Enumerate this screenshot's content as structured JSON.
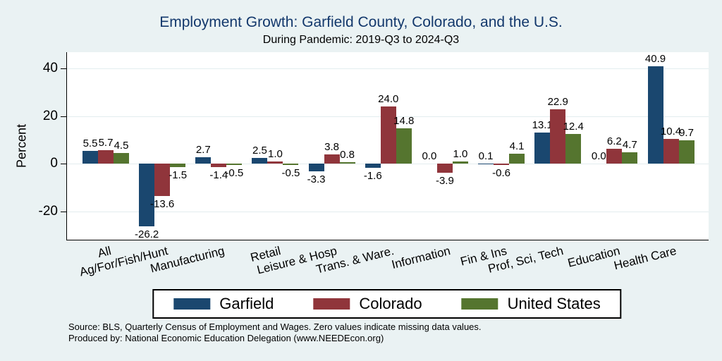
{
  "title": "Employment Growth: Garfield County, Colorado, and the U.S.",
  "subtitle": "During Pandemic: 2019-Q3 to 2024-Q3",
  "source_line1": "Source: BLS, Quarterly Census of Employment and Wages. Zero values indicate missing data values.",
  "source_line2": "Produced by: National Economic Education Delegation (www.NEEDEcon.org)",
  "colors": {
    "background": "#EAF2F3",
    "plot_background": "#FFFFFF",
    "title_text": "#13386C",
    "gridline": "#E3EDEF",
    "garfield": "#1A476F",
    "colorado": "#90353B",
    "united_states": "#55752F"
  },
  "chart_data": {
    "type": "bar",
    "title": "Employment Growth: Garfield County, Colorado, and the U.S.",
    "subtitle": "During Pandemic: 2019-Q3 to 2024-Q3",
    "xlabel": "",
    "ylabel": "Percent",
    "yticks": [
      40,
      20,
      0,
      -20
    ],
    "ylim": [
      -31.8,
      46.8
    ],
    "grid": true,
    "legend_position": "bottom",
    "value_labels": "one_decimal",
    "categories": [
      "All",
      "Ag/For/Fish/Hunt",
      "Manufacturing",
      "Retail",
      "Leisure & Hosp",
      "Trans. & Ware.",
      "Information",
      "Fin & Ins",
      "Prof, Sci, Tech",
      "Education",
      "Health Care"
    ],
    "series": [
      {
        "name": "Garfield",
        "color": "#1A476F",
        "values": [
          5.5,
          -26.2,
          2.7,
          2.5,
          -3.3,
          -1.6,
          0.0,
          0.1,
          13.1,
          0.0,
          40.9
        ]
      },
      {
        "name": "Colorado",
        "color": "#90353B",
        "values": [
          5.7,
          -13.6,
          -1.4,
          1.0,
          3.8,
          24.0,
          -3.9,
          -0.6,
          22.9,
          6.2,
          10.4
        ]
      },
      {
        "name": "United States",
        "color": "#55752F",
        "values": [
          4.5,
          -1.5,
          -0.5,
          -0.5,
          0.8,
          14.8,
          1.0,
          4.1,
          12.4,
          4.7,
          9.7
        ]
      }
    ]
  }
}
